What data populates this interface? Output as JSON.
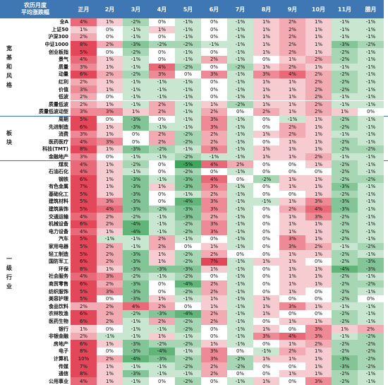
{
  "corner": {
    "line1": "农历月度",
    "line2": "平均涨跌幅"
  },
  "months": [
    "正月",
    "2月",
    "3月",
    "4月",
    "5月",
    "6月",
    "7月",
    "8月",
    "9月",
    "10月",
    "11月",
    "腊月"
  ],
  "groups": [
    {
      "label": "宽基和风格",
      "rows": [
        {
          "name": "全A",
          "values": [
            "4%",
            "1%",
            "-2%",
            "0%",
            "-1%",
            "0%",
            "-1%",
            "1%",
            "2%",
            "1%",
            "-1%",
            "-1%"
          ]
        },
        {
          "name": "上证50",
          "values": [
            "1%",
            "0%",
            "-1%",
            "1%",
            "-1%",
            "0%",
            "-1%",
            "1%",
            "2%",
            "1%",
            "-1%",
            "-1%"
          ]
        },
        {
          "name": "沪深300",
          "values": [
            "2%",
            "0%",
            "-1%",
            "0%",
            "-1%",
            "0%",
            "-1%",
            "1%",
            "2%",
            "1%",
            "-1%",
            "-1%"
          ]
        },
        {
          "name": "中证1000",
          "values": [
            "8%",
            "2%",
            "-3%",
            "-2%",
            "-2%",
            "-1%",
            "-1%",
            "1%",
            "2%",
            "1%",
            "-3%",
            "-2%"
          ]
        },
        {
          "name": "创业板指",
          "values": [
            "5%",
            "0%",
            "-2%",
            "0%",
            "-1%",
            "0%",
            "-1%",
            "1%",
            "2%",
            "1%",
            "-2%",
            "-1%"
          ]
        },
        {
          "name": "景气",
          "values": [
            "4%",
            "1%",
            "-1%",
            "0%",
            "-1%",
            "2%",
            "-1%",
            "0%",
            "1%",
            "2%",
            "-2%",
            "-1%"
          ]
        },
        {
          "name": "质量",
          "values": [
            "3%",
            "1%",
            "-1%",
            "4%",
            "-2%",
            "0%",
            "-2%",
            "1%",
            "2%",
            "1%",
            "-1%",
            "-1%"
          ]
        },
        {
          "name": "动量",
          "values": [
            "6%",
            "2%",
            "-2%",
            "3%",
            "0%",
            "3%",
            "-1%",
            "3%",
            "4%",
            "2%",
            "-2%",
            "-1%"
          ]
        },
        {
          "name": "红利",
          "values": [
            "2%",
            "1%",
            "-1%",
            "-1%",
            "-1%",
            "0%",
            "-1%",
            "1%",
            "1%",
            "2%",
            "-2%",
            "-1%"
          ]
        },
        {
          "name": "价值",
          "values": [
            "3%",
            "1%",
            "-1%",
            "-1%",
            "-1%",
            "0%",
            "-1%",
            "1%",
            "1%",
            "2%",
            "-2%",
            "-1%"
          ]
        },
        {
          "name": "低波",
          "values": [
            "2%",
            "0%",
            "-1%",
            "-1%",
            "-1%",
            "0%",
            "-1%",
            "1%",
            "1%",
            "2%",
            "-1%",
            "-1%"
          ]
        },
        {
          "name": "质量低波",
          "values": [
            "2%",
            "1%",
            "-1%",
            "2%",
            "-1%",
            "1%",
            "-2%",
            "1%",
            "1%",
            "2%",
            "-1%",
            "-1%"
          ]
        },
        {
          "name": "质量低波动型",
          "values": [
            "3%",
            "3%",
            "1%",
            "2%",
            "-1%",
            "2%",
            "0%",
            "2%",
            "1%",
            "2%",
            "1%",
            "0%"
          ]
        }
      ]
    },
    {
      "label": "板块",
      "rows": [
        {
          "name": "周期",
          "values": [
            "5%",
            "0%",
            "-3%",
            "0%",
            "-1%",
            "3%",
            "-1%",
            "0%",
            "-1%",
            "1%",
            "-2%",
            "-1%"
          ]
        },
        {
          "name": "先进制造",
          "values": [
            "6%",
            "1%",
            "-3%",
            "-1%",
            "-1%",
            "3%",
            "-1%",
            "0%",
            "2%",
            "1%",
            "-2%",
            "-1%"
          ]
        },
        {
          "name": "消费",
          "values": [
            "3%",
            "1%",
            "0%",
            "2%",
            "-2%",
            "2%",
            "-1%",
            "1%",
            "2%",
            "1%",
            "-1%",
            "-1%"
          ]
        },
        {
          "name": "医药医疗",
          "values": [
            "4%",
            "3%",
            "0%",
            "2%",
            "-2%",
            "2%",
            "-1%",
            "0%",
            "1%",
            "1%",
            "-2%",
            "-1%"
          ]
        },
        {
          "name": "科技(TMT)",
          "values": [
            "8%",
            "1%",
            "-3%",
            "-2%",
            "-1%",
            "3%",
            "-1%",
            "1%",
            "1%",
            "1%",
            "-2%",
            "-2%"
          ]
        },
        {
          "name": "金融地产",
          "values": [
            "3%",
            "0%",
            "-1%",
            "-1%",
            "-2%",
            "-1%",
            "-1%",
            "1%",
            "1%",
            "2%",
            "-1%",
            "-1%"
          ]
        }
      ]
    },
    {
      "label": "一级行业",
      "rows": [
        {
          "name": "煤炭",
          "values": [
            "4%",
            "1%",
            "-2%",
            "0%",
            "-5%",
            "4%",
            "2%",
            "0%",
            "0%",
            "1%",
            "-2%",
            "-1%"
          ]
        },
        {
          "name": "石油石化",
          "values": [
            "4%",
            "1%",
            "-1%",
            "0%",
            "-2%",
            "0%",
            "-1%",
            "0%",
            "0%",
            "0%",
            "-2%",
            "-1%"
          ]
        },
        {
          "name": "钢铁",
          "values": [
            "6%",
            "1%",
            "-3%",
            "-1%",
            "-3%",
            "4%",
            "0%",
            "-2%",
            "1%",
            "1%",
            "-2%",
            "-2%"
          ]
        },
        {
          "name": "有色金属",
          "values": [
            "7%",
            "1%",
            "-3%",
            "1%",
            "-3%",
            "3%",
            "-1%",
            "0%",
            "1%",
            "1%",
            "-3%",
            "-1%"
          ]
        },
        {
          "name": "基础化工",
          "values": [
            "5%",
            "1%",
            "-3%",
            "0%",
            "-1%",
            "2%",
            "-1%",
            "0%",
            "0%",
            "1%",
            "-2%",
            "-1%"
          ]
        },
        {
          "name": "建筑材料",
          "values": [
            "5%",
            "3%",
            "-3%",
            "0%",
            "-4%",
            "3%",
            "-1%",
            "-1%",
            "1%",
            "3%",
            "-3%",
            "-1%"
          ]
        },
        {
          "name": "建筑装饰",
          "values": [
            "5%",
            "4%",
            "-3%",
            "-2%",
            "-3%",
            "3%",
            "-1%",
            "0%",
            "2%",
            "4%",
            "-3%",
            "-1%"
          ]
        },
        {
          "name": "交通运输",
          "values": [
            "4%",
            "2%",
            "-2%",
            "-1%",
            "-3%",
            "2%",
            "-1%",
            "0%",
            "1%",
            "3%",
            "-2%",
            "-1%"
          ]
        },
        {
          "name": "机械设备",
          "values": [
            "6%",
            "2%",
            "-4%",
            "-1%",
            "-2%",
            "3%",
            "-1%",
            "0%",
            "1%",
            "1%",
            "-2%",
            "-1%"
          ]
        },
        {
          "name": "电力设备",
          "values": [
            "4%",
            "1%",
            "-4%",
            "-1%",
            "-2%",
            "3%",
            "-1%",
            "0%",
            "1%",
            "1%",
            "-2%",
            "-1%"
          ]
        },
        {
          "name": "汽车",
          "values": [
            "5%",
            "-1%",
            "-1%",
            "2%",
            "-1%",
            "0%",
            "-1%",
            "0%",
            "3%",
            "1%",
            "-2%",
            "-1%"
          ]
        },
        {
          "name": "家用电器",
          "values": [
            "5%",
            "2%",
            "-1%",
            "2%",
            "0%",
            "1%",
            "-1%",
            "0%",
            "3%",
            "2%",
            "-1%",
            "-2%"
          ]
        },
        {
          "name": "轻工制造",
          "values": [
            "5%",
            "2%",
            "-3%",
            "1%",
            "-2%",
            "2%",
            "0%",
            "0%",
            "1%",
            "1%",
            "-2%",
            "-1%"
          ]
        },
        {
          "name": "国防军工",
          "values": [
            "6%",
            "2%",
            "-3%",
            "1%",
            "-2%",
            "7%",
            "-1%",
            "1%",
            "1%",
            "0%",
            "-2%",
            "-3%"
          ]
        },
        {
          "name": "环保",
          "values": [
            "8%",
            "1%",
            "-3%",
            "-3%",
            "-3%",
            "1%",
            "-1%",
            "0%",
            "1%",
            "1%",
            "-4%",
            "-3%"
          ]
        },
        {
          "name": "社会服务",
          "values": [
            "4%",
            "3%",
            "-2%",
            "-1%",
            "-2%",
            "0%",
            "-1%",
            "0%",
            "1%",
            "1%",
            "-2%",
            "-1%"
          ]
        },
        {
          "name": "商贸零售",
          "values": [
            "6%",
            "2%",
            "-3%",
            "0%",
            "-4%",
            "2%",
            "-1%",
            "0%",
            "1%",
            "1%",
            "-2%",
            "-2%"
          ]
        },
        {
          "name": "纺织服饰",
          "values": [
            "5%",
            "3%",
            "-3%",
            "0%",
            "-2%",
            "2%",
            "-1%",
            "0%",
            "1%",
            "0%",
            "-2%",
            "-1%"
          ]
        },
        {
          "name": "美容护理",
          "values": [
            "5%",
            "0%",
            "-3%",
            "1%",
            "-1%",
            "1%",
            "-1%",
            "1%",
            "0%",
            "0%",
            "-2%",
            "0%"
          ]
        },
        {
          "name": "食品饮料",
          "values": [
            "2%",
            "2%",
            "4%",
            "2%",
            "0%",
            "1%",
            "-1%",
            "1%",
            "3%",
            "1%",
            "-1%",
            "-1%"
          ]
        },
        {
          "name": "农林牧渔",
          "values": [
            "6%",
            "2%",
            "-2%",
            "-3%",
            "-4%",
            "2%",
            "-1%",
            "1%",
            "0%",
            "0%",
            "-2%",
            "-1%"
          ]
        },
        {
          "name": "医药生物",
          "values": [
            "6%",
            "2%",
            "-1%",
            "2%",
            "-2%",
            "2%",
            "-1%",
            "0%",
            "1%",
            "1%",
            "-2%",
            "-1%"
          ]
        },
        {
          "name": "银行",
          "values": [
            "1%",
            "0%",
            "-1%",
            "-1%",
            "-2%",
            "0%",
            "-1%",
            "1%",
            "0%",
            "3%",
            "1%",
            "2%"
          ]
        },
        {
          "name": "非银金融",
          "values": [
            "2%",
            "-1%",
            "-1%",
            "1%",
            "-1%",
            "0%",
            "-1%",
            "3%",
            "4%",
            "3%",
            "-1%",
            "-2%"
          ]
        },
        {
          "name": "房地产",
          "values": [
            "6%",
            "1%",
            "-3%",
            "-2%",
            "-2%",
            "1%",
            "-1%",
            "0%",
            "1%",
            "2%",
            "-2%",
            "-2%"
          ]
        },
        {
          "name": "电子",
          "values": [
            "8%",
            "0%",
            "-3%",
            "-4%",
            "-1%",
            "3%",
            "0%",
            "-1%",
            "2%",
            "1%",
            "-2%",
            "-2%"
          ]
        },
        {
          "name": "计算机",
          "values": [
            "10%",
            "2%",
            "-4%",
            "-3%",
            "-2%",
            "3%",
            "-2%",
            "1%",
            "1%",
            "1%",
            "-3%",
            "-2%"
          ]
        },
        {
          "name": "传媒",
          "values": [
            "7%",
            "1%",
            "-1%",
            "-1%",
            "-2%",
            "2%",
            "-2%",
            "0%",
            "0%",
            "1%",
            "-3%",
            "-2%"
          ]
        },
        {
          "name": "通信",
          "values": [
            "8%",
            "1%",
            "-3%",
            "-1%",
            "-1%",
            "2%",
            "0%",
            "0%",
            "1%",
            "1%",
            "-2%",
            "-1%"
          ]
        },
        {
          "name": "公用事业",
          "values": [
            "4%",
            "1%",
            "-1%",
            "0%",
            "-2%",
            "0%",
            "-1%",
            "1%",
            "0%",
            "3%",
            "-2%",
            "-1%"
          ]
        }
      ]
    }
  ],
  "colors": {
    "header_bg": "#3f76b4",
    "positive": "#e3485a",
    "negative": "#3ea55c",
    "neutral": "#ffffff"
  }
}
